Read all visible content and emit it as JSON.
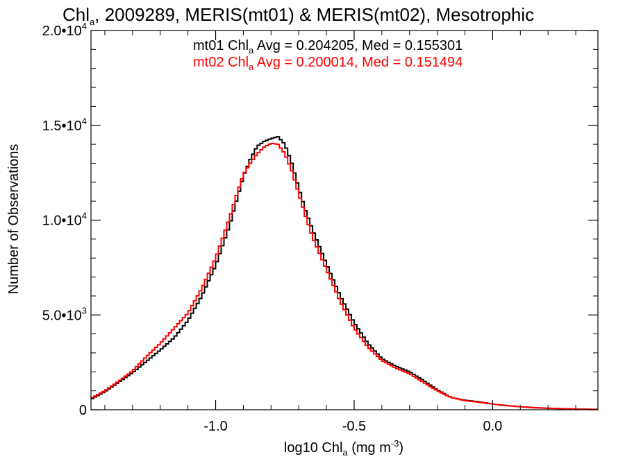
{
  "chart_data": {
    "type": "line",
    "title": {
      "prefix": "Chl",
      "subscript": "a",
      "rest": ", 2009289, MERIS(mt01) & MERIS(mt02), Mesotrophic"
    },
    "xlabel": {
      "prefix": "log10 Chl",
      "subscript": "a",
      "unit_prefix": " (mg m",
      "unit_superscript": "-3",
      "unit_suffix": ")"
    },
    "ylabel": "Number of Observations",
    "xlim": [
      -1.45,
      0.38
    ],
    "ylim": [
      0,
      20000
    ],
    "x_ticks": [
      {
        "value": -1.0,
        "label": "-1.0"
      },
      {
        "value": -0.5,
        "label": "-0.5"
      },
      {
        "value": 0.0,
        "label": "0.0"
      }
    ],
    "y_ticks": [
      {
        "value": 0,
        "mantissa": "0",
        "exponent": ""
      },
      {
        "value": 5000,
        "mantissa": "5.0•10",
        "exponent": "3"
      },
      {
        "value": 10000,
        "mantissa": "1.0•10",
        "exponent": "4"
      },
      {
        "value": 15000,
        "mantissa": "1.5•10",
        "exponent": "4"
      },
      {
        "value": 20000,
        "mantissa": "2.0•10",
        "exponent": "4"
      }
    ],
    "annotations": [
      {
        "series": "mt01",
        "prefix": "mt01 Chl",
        "subscript": "a",
        "suffix": " Avg = 0.204205, Med = 0.155301",
        "color": "#000000"
      },
      {
        "series": "mt02",
        "prefix": "mt02 Chl",
        "subscript": "a",
        "suffix": " Avg = 0.200014, Med = 0.151494",
        "color": "#ff0000"
      }
    ],
    "grid": false,
    "step": true,
    "series": [
      {
        "name": "mt01",
        "color": "#000000",
        "points": [
          [
            -1.45,
            550
          ],
          [
            -1.4,
            950
          ],
          [
            -1.35,
            1450
          ],
          [
            -1.3,
            1950
          ],
          [
            -1.25,
            2550
          ],
          [
            -1.2,
            3150
          ],
          [
            -1.15,
            3800
          ],
          [
            -1.1,
            4700
          ],
          [
            -1.05,
            6000
          ],
          [
            -1.0,
            7600
          ],
          [
            -0.95,
            9700
          ],
          [
            -0.925,
            11000
          ],
          [
            -0.9,
            12300
          ],
          [
            -0.875,
            13200
          ],
          [
            -0.85,
            13900
          ],
          [
            -0.825,
            14150
          ],
          [
            -0.8,
            14300
          ],
          [
            -0.775,
            14400
          ],
          [
            -0.75,
            14000
          ],
          [
            -0.725,
            13000
          ],
          [
            -0.7,
            11700
          ],
          [
            -0.675,
            10500
          ],
          [
            -0.65,
            9500
          ],
          [
            -0.6,
            7700
          ],
          [
            -0.55,
            6000
          ],
          [
            -0.5,
            4600
          ],
          [
            -0.45,
            3500
          ],
          [
            -0.4,
            2700
          ],
          [
            -0.35,
            2300
          ],
          [
            -0.3,
            2000
          ],
          [
            -0.25,
            1550
          ],
          [
            -0.2,
            1050
          ],
          [
            -0.15,
            650
          ],
          [
            -0.1,
            500
          ],
          [
            -0.05,
            420
          ],
          [
            0.0,
            300
          ],
          [
            0.05,
            220
          ],
          [
            0.1,
            160
          ],
          [
            0.15,
            110
          ],
          [
            0.2,
            80
          ],
          [
            0.25,
            55
          ],
          [
            0.3,
            35
          ],
          [
            0.38,
            20
          ]
        ]
      },
      {
        "name": "mt02",
        "color": "#ff0000",
        "points": [
          [
            -1.45,
            600
          ],
          [
            -1.4,
            1000
          ],
          [
            -1.35,
            1500
          ],
          [
            -1.3,
            2050
          ],
          [
            -1.25,
            2800
          ],
          [
            -1.2,
            3500
          ],
          [
            -1.15,
            4300
          ],
          [
            -1.1,
            5100
          ],
          [
            -1.05,
            6400
          ],
          [
            -1.0,
            8000
          ],
          [
            -0.95,
            10100
          ],
          [
            -0.925,
            11300
          ],
          [
            -0.9,
            12400
          ],
          [
            -0.875,
            13000
          ],
          [
            -0.85,
            13500
          ],
          [
            -0.825,
            13850
          ],
          [
            -0.8,
            14050
          ],
          [
            -0.775,
            14000
          ],
          [
            -0.75,
            13500
          ],
          [
            -0.725,
            12600
          ],
          [
            -0.7,
            11400
          ],
          [
            -0.675,
            10200
          ],
          [
            -0.65,
            9100
          ],
          [
            -0.6,
            7400
          ],
          [
            -0.55,
            5700
          ],
          [
            -0.5,
            4300
          ],
          [
            -0.45,
            3300
          ],
          [
            -0.4,
            2600
          ],
          [
            -0.35,
            2200
          ],
          [
            -0.3,
            1900
          ],
          [
            -0.25,
            1450
          ],
          [
            -0.2,
            1000
          ],
          [
            -0.15,
            650
          ],
          [
            -0.1,
            480
          ],
          [
            -0.05,
            400
          ],
          [
            0.0,
            300
          ],
          [
            0.05,
            220
          ],
          [
            0.1,
            160
          ],
          [
            0.15,
            110
          ],
          [
            0.2,
            80
          ],
          [
            0.25,
            55
          ],
          [
            0.3,
            35
          ],
          [
            0.38,
            20
          ]
        ]
      }
    ]
  }
}
